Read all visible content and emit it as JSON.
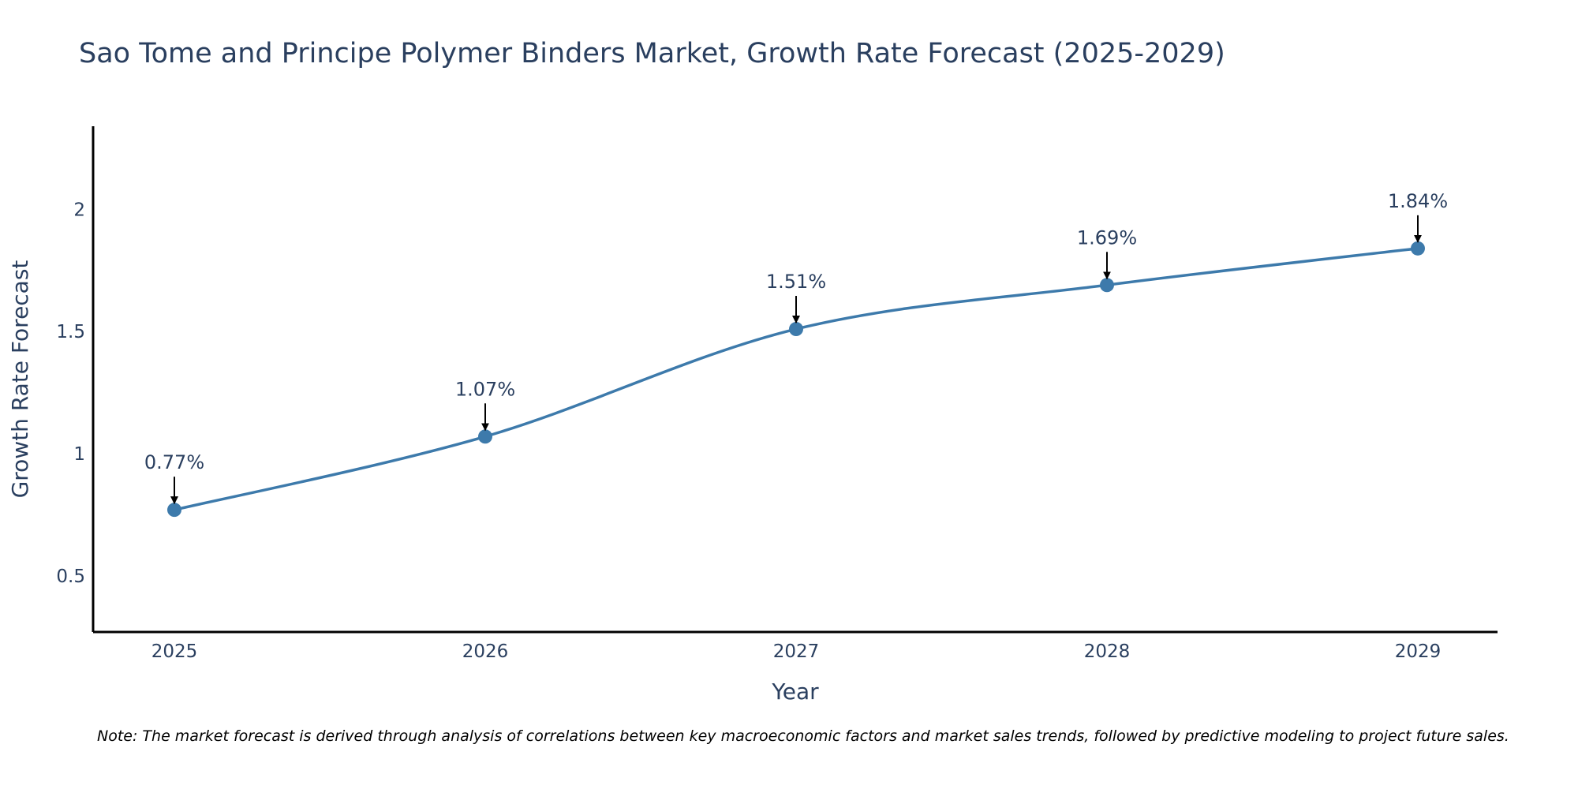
{
  "chart_data": {
    "type": "line",
    "title": "Sao Tome and Principe Polymer Binders Market, Growth Rate Forecast (2025-2029)",
    "xlabel": "Year",
    "ylabel": "Growth Rate Forecast",
    "categories": [
      "2025",
      "2026",
      "2027",
      "2028",
      "2029"
    ],
    "series": [
      {
        "name": "Growth Rate Forecast",
        "values": [
          0.77,
          1.07,
          1.51,
          1.69,
          1.84
        ],
        "labels": [
          "0.77%",
          "1.07%",
          "1.51%",
          "1.69%",
          "1.84%"
        ]
      }
    ],
    "yticks": [
      "0.5",
      "1",
      "1.5",
      "2"
    ],
    "ytick_values": [
      0.5,
      1,
      1.5,
      2
    ],
    "ylim": [
      0.27,
      2.34
    ],
    "grid": false,
    "line_color": "#3d7aab",
    "marker_color": "#3d7aab",
    "note": "Note: The market forecast is derived through analysis of correlations between key macroeconomic factors and market sales trends, followed by predictive modeling to project future sales."
  }
}
